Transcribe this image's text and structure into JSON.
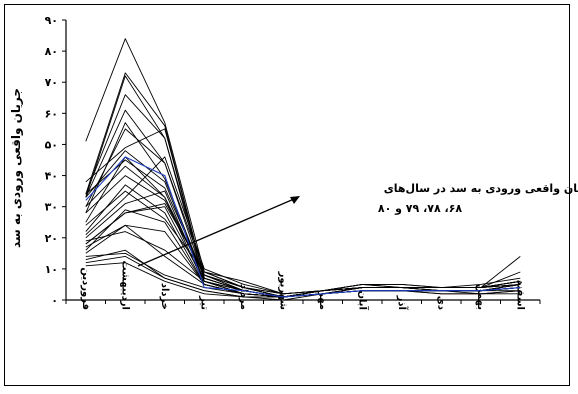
{
  "chart_data": {
    "type": "line",
    "ylabel": "جریان واقعی ورودی به سد",
    "ylim": [
      0,
      90
    ],
    "yticks": [
      0,
      10,
      20,
      30,
      40,
      50,
      60,
      70,
      80,
      90
    ],
    "ytick_labels": [
      "۰",
      "۱۰",
      "۲۰",
      "۳۰",
      "۴۰",
      "۵۰",
      "۶۰",
      "۷۰",
      "۸۰",
      "۹۰"
    ],
    "categories": [
      "فروردین",
      "اردیبهشت",
      "خرداد",
      "تیر",
      "مرداد",
      "شهریور",
      "مهر",
      "آبان",
      "آذر",
      "دی",
      "بهمن",
      "اسفند"
    ],
    "annotation_lines": [
      "جریان واقعی ورودی به سد در سال‌های",
      "۶۸، ۷۸، ۷۹ و ۸۰"
    ],
    "colors": {
      "series": "#000000",
      "highlight": "#1f3fbf"
    },
    "series": [
      {
        "values": [
          51,
          84,
          57,
          9,
          4,
          1,
          3,
          4,
          4,
          4,
          5,
          7
        ]
      },
      {
        "values": [
          34,
          73,
          56,
          7,
          3,
          1,
          3,
          4,
          4,
          4,
          4,
          6
        ]
      },
      {
        "values": [
          33,
          72,
          52,
          8,
          3,
          1,
          3,
          4,
          4,
          4,
          4,
          5
        ]
      },
      {
        "values": [
          34,
          66,
          52,
          6,
          2,
          1,
          3,
          5,
          4,
          4,
          4,
          5
        ]
      },
      {
        "values": [
          38,
          49,
          55,
          7,
          3,
          1,
          3,
          4,
          4,
          4,
          4,
          9
        ]
      },
      {
        "values": [
          28,
          57,
          39,
          7,
          3,
          1,
          2,
          4,
          4,
          3,
          3,
          5
        ]
      },
      {
        "values": [
          30,
          55,
          44,
          7,
          3,
          1,
          2,
          4,
          4,
          3,
          3,
          4
        ]
      },
      {
        "values": [
          33,
          48,
          38,
          6,
          2,
          1,
          2,
          4,
          4,
          3,
          3,
          4
        ]
      },
      {
        "values": [
          25,
          46,
          33,
          5,
          2,
          1,
          2,
          4,
          4,
          3,
          3,
          4
        ]
      },
      {
        "values": [
          20,
          31,
          35,
          6,
          3,
          1,
          2,
          3,
          3,
          3,
          3,
          5
        ]
      },
      {
        "values": [
          22,
          37,
          28,
          5,
          2,
          1,
          2,
          3,
          3,
          3,
          3,
          4
        ]
      },
      {
        "values": [
          18,
          28,
          30,
          6,
          3,
          1,
          2,
          4,
          4,
          3,
          3,
          3
        ]
      },
      {
        "values": [
          16,
          29,
          25,
          5,
          2,
          1,
          2,
          3,
          3,
          3,
          3,
          5
        ]
      },
      {
        "values": [
          15,
          24,
          22,
          5,
          2,
          1,
          2,
          3,
          3,
          3,
          3,
          4
        ]
      },
      {
        "values": [
          13,
          16,
          7,
          3,
          1,
          1,
          2,
          3,
          3,
          3,
          2,
          3
        ]
      },
      {
        "values": [
          12,
          14,
          7,
          3,
          1,
          1,
          2,
          3,
          3,
          2,
          2,
          3
        ]
      },
      {
        "values": [
          11,
          12,
          6,
          2,
          1,
          0,
          2,
          3,
          3,
          2,
          2,
          2
        ]
      },
      {
        "values": [
          14,
          15,
          8,
          4,
          2,
          1,
          2,
          3,
          3,
          3,
          3,
          4
        ]
      },
      {
        "values": [
          17,
          24,
          14,
          5,
          2,
          1,
          2,
          3,
          3,
          3,
          3,
          5
        ]
      },
      {
        "values": [
          19,
          22,
          16,
          6,
          2,
          1,
          2,
          3,
          3,
          3,
          3,
          4
        ]
      },
      {
        "values": [
          28,
          40,
          32,
          8,
          3,
          1,
          3,
          4,
          4,
          4,
          4,
          5
        ]
      },
      {
        "values": [
          33,
          61,
          44,
          9,
          4,
          2,
          3,
          5,
          5,
          4,
          4,
          6
        ]
      },
      {
        "values": [
          24,
          35,
          26,
          9,
          4,
          2,
          3,
          4,
          4,
          4,
          4,
          5
        ]
      },
      {
        "values": [
          21,
          33,
          46,
          10,
          5,
          2,
          3,
          5,
          5,
          4,
          4,
          6
        ]
      },
      {
        "values": [
          18,
          28,
          31,
          9,
          6,
          2,
          3,
          5,
          4,
          4,
          4,
          14
        ]
      },
      {
        "values": [
          34,
          45,
          36,
          8,
          4,
          1,
          3,
          4,
          4,
          4,
          4,
          6
        ]
      },
      {
        "values": [
          30,
          43,
          33,
          8,
          4,
          1,
          3,
          4,
          4,
          4,
          4,
          6
        ]
      }
    ],
    "highlight_series": {
      "values": [
        32,
        46,
        40,
        4,
        3,
        1,
        2,
        3,
        3,
        3,
        3,
        4
      ]
    }
  }
}
